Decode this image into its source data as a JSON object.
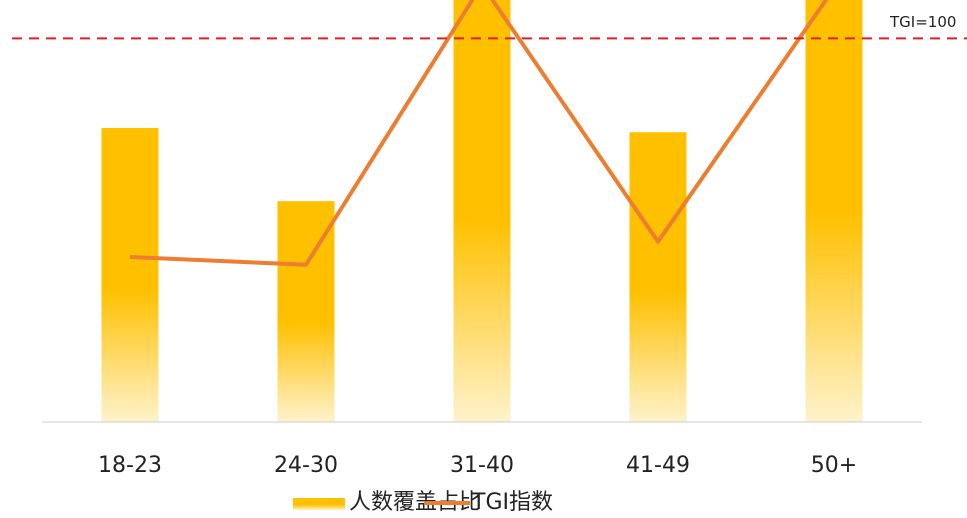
{
  "chart_data": {
    "type": "bar-line",
    "categories": [
      "18-23",
      "24-30",
      "31-40",
      "41-49",
      "50+"
    ],
    "series": [
      {
        "name": "人数覆盖占比",
        "type": "bar",
        "color": "#ffc000",
        "values": [
          20.9,
          15.7,
          32,
          20.6,
          33
        ]
      },
      {
        "name": "TGI指数",
        "type": "line",
        "axis": "y2",
        "color": "#ed7d31",
        "values": [
          43,
          41,
          114,
          47,
          113
        ]
      }
    ],
    "ylim": [
      0,
      30
    ],
    "y2lim": [
      0,
      110
    ],
    "reference_line": {
      "value": 100,
      "label": "TGI=100",
      "axis": "y2",
      "color": "#e02020"
    }
  }
}
